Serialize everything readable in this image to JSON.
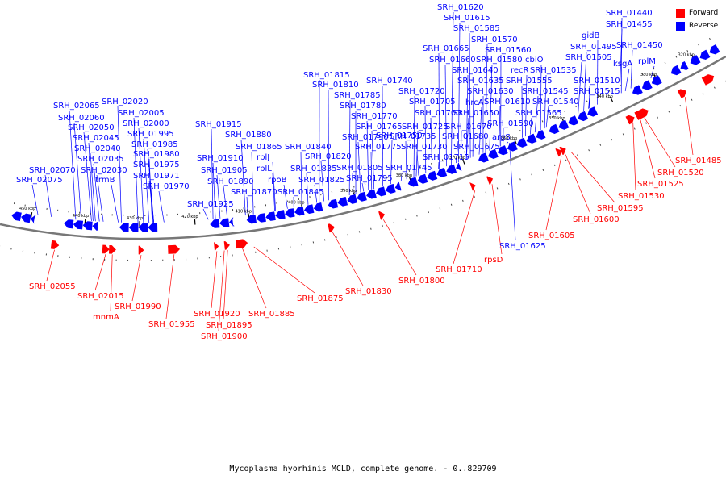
{
  "caption": "Mycoplasma hyorhinis MCLD, complete genome. - 0..829709",
  "legend": [
    {
      "label": "Forward",
      "color": "#ff0000"
    },
    {
      "label": "Reverse",
      "color": "#0000ff"
    }
  ],
  "colors": {
    "forward": "#ff0000",
    "reverse": "#0000ff",
    "backbone": "#808080"
  },
  "scale_labels": [
    "320 kbp",
    "330 kbp",
    "340 kbp",
    "350 kbp",
    "360 kbp",
    "370 kbp",
    "380 kbp",
    "390 kbp",
    "400 kbp",
    "410 kbp",
    "420 kbp",
    "430 kbp",
    "440 kbp",
    "450 kbp"
  ],
  "reverse_genes": [
    "SRH_02075",
    "SRH_02070",
    "SRH_02065",
    "SRH_02060",
    "SRH_02050",
    "SRH_02045",
    "SRH_02040",
    "SRH_02035",
    "SRH_02030",
    "trmB",
    "SRH_02020",
    "SRH_02005",
    "SRH_02000",
    "SRH_01995",
    "SRH_01985",
    "SRH_01980",
    "SRH_01975",
    "SRH_01971",
    "SRH_01970",
    "SRH_01925",
    "SRH_01915",
    "SRH_01910",
    "SRH_01905",
    "SRH_01890",
    "SRH_01880",
    "SRH_01870",
    "SRH_01865",
    "rplL",
    "rplJ",
    "rpoB",
    "SRH_01845",
    "SRH_01840",
    "SRH_01835",
    "SRH_01825",
    "SRH_01820",
    "SRH_01815",
    "SRH_01810",
    "SRH_01805",
    "SRH_01795",
    "SRH_01790",
    "SRH_01785",
    "SRH_01780",
    "SRH_01775",
    "SRH_01770",
    "SRH_01765",
    "SRH_01750",
    "SRH_01745",
    "SRH_01740",
    "SRH_01735",
    "SRH_01730",
    "SRH_01725",
    "SRH_01720",
    "SRH_01715",
    "SRH_01705",
    "SRH_01700",
    "SRH_01680",
    "SRH_01675",
    "SRH_01670",
    "SRH_01665",
    "SRH_01660",
    "SRH_01650",
    "SRH_01640",
    "SRH_01635",
    "SRH_01630",
    "SRH_01625",
    "SRH_01620",
    "SRH_01615",
    "SRH_01610",
    "SRH_01590",
    "SRH_01585",
    "SRH_01580",
    "SRH_01570",
    "SRH_01565",
    "SRH_01560",
    "SRH_01555",
    "SRH_01545",
    "SRH_01540",
    "SRH_01535",
    "SRH_01515",
    "SRH_01510",
    "SRH_01505",
    "SRH_01495",
    "SRH_01455",
    "SRH_01450",
    "SRH_01440",
    "hrcA",
    "argS",
    "recR",
    "cbiO",
    "gidB",
    "ksgA",
    "rplM"
  ],
  "forward_genes": [
    "SRH_02055",
    "SRH_02015",
    "mnmA",
    "SRH_01990",
    "SRH_01955",
    "SRH_01920",
    "SRH_01895",
    "SRH_01900",
    "SRH_01885",
    "SRH_01875",
    "SRH_01830",
    "SRH_01800",
    "SRH_01710",
    "rpsD",
    "SRH_01605",
    "SRH_01600",
    "SRH_01595",
    "SRH_01530",
    "SRH_01525",
    "SRH_01520",
    "SRH_01485"
  ]
}
